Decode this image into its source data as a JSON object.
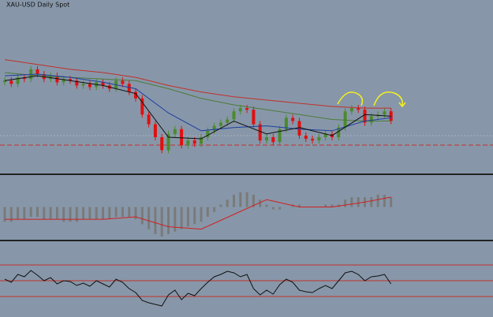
{
  "chart_data": [
    {
      "type": "candlestick",
      "title": "XAU-USD Daily Spot",
      "ylim": [
        0,
        100
      ],
      "up_color": "#4b8a2c",
      "down_color": "#e01010",
      "open": [
        54,
        55,
        53,
        57,
        56,
        62,
        59,
        56,
        58,
        54,
        56,
        55,
        52,
        53,
        51,
        54,
        52,
        50,
        55,
        53,
        48,
        44,
        34,
        28,
        20,
        12,
        22,
        25,
        15,
        18,
        16,
        20,
        24,
        27,
        29,
        31,
        36,
        38,
        37,
        28,
        18,
        20,
        17,
        25,
        32,
        30,
        21,
        19,
        18,
        20,
        22,
        20,
        26,
        36,
        38,
        37,
        29,
        33,
        34,
        36
      ],
      "high": [
        57,
        57,
        59,
        59,
        64,
        64,
        61,
        60,
        60,
        58,
        58,
        57,
        55,
        55,
        56,
        56,
        54,
        57,
        57,
        55,
        50,
        46,
        36,
        30,
        22,
        24,
        27,
        27,
        20,
        20,
        22,
        26,
        29,
        31,
        33,
        38,
        40,
        40,
        39,
        30,
        22,
        22,
        27,
        34,
        34,
        32,
        23,
        21,
        22,
        24,
        24,
        28,
        38,
        40,
        40,
        39,
        35,
        36,
        38,
        38
      ],
      "low": [
        52,
        51,
        51,
        54,
        54,
        57,
        54,
        54,
        52,
        52,
        53,
        50,
        50,
        49,
        49,
        50,
        48,
        48,
        51,
        46,
        42,
        32,
        26,
        18,
        10,
        10,
        20,
        13,
        13,
        14,
        14,
        18,
        22,
        25,
        27,
        29,
        34,
        35,
        26,
        16,
        16,
        15,
        15,
        23,
        28,
        19,
        17,
        16,
        16,
        18,
        18,
        18,
        24,
        34,
        35,
        27,
        27,
        31,
        32,
        28
      ],
      "close": [
        55,
        53,
        57,
        56,
        62,
        59,
        56,
        58,
        54,
        56,
        55,
        52,
        53,
        51,
        54,
        52,
        50,
        55,
        53,
        48,
        44,
        34,
        28,
        20,
        12,
        22,
        25,
        15,
        18,
        16,
        20,
        24,
        27,
        29,
        31,
        36,
        38,
        37,
        28,
        18,
        20,
        17,
        25,
        32,
        30,
        21,
        19,
        18,
        20,
        22,
        20,
        26,
        36,
        38,
        37,
        29,
        33,
        34,
        36,
        30
      ],
      "series": [
        {
          "color": "#c0302a",
          "x": [
            0,
            5,
            10,
            15,
            20,
            25,
            30,
            35,
            40,
            45,
            50,
            55,
            59
          ],
          "values": [
            68,
            65,
            62,
            60,
            57,
            52,
            48,
            45,
            43,
            41,
            39,
            38,
            38
          ]
        },
        {
          "color": "#4d7a3a",
          "x": [
            0,
            5,
            10,
            15,
            20,
            25,
            30,
            35,
            40,
            45,
            50,
            55,
            59
          ],
          "values": [
            60,
            58,
            57,
            56,
            55,
            50,
            44,
            40,
            37,
            34,
            31,
            30,
            30
          ]
        },
        {
          "color": "#1f3fa0",
          "x": [
            0,
            5,
            10,
            15,
            20,
            25,
            30,
            35,
            40,
            45,
            50,
            55,
            59
          ],
          "values": [
            58,
            59,
            57,
            54,
            50,
            35,
            24,
            26,
            27,
            25,
            24,
            30,
            32
          ]
        },
        {
          "color": "#111111",
          "x": [
            0,
            5,
            10,
            15,
            20,
            25,
            30,
            35,
            40,
            45,
            50,
            55,
            59
          ],
          "values": [
            55,
            58,
            55,
            52,
            47,
            20,
            19,
            30,
            22,
            26,
            21,
            34,
            33
          ]
        }
      ]
    },
    {
      "type": "macd",
      "ylim": [
        -12,
        12
      ],
      "bar_color": "#7a7a7a",
      "line_color": "#d02020",
      "values": [
        -6,
        -6,
        -5,
        -5,
        -4,
        -4,
        -5,
        -5,
        -5,
        -6,
        -6,
        -6,
        -5,
        -5,
        -5,
        -5,
        -5,
        -4,
        -4,
        -4,
        -5,
        -7,
        -9,
        -11,
        -12,
        -11,
        -10,
        -9,
        -8,
        -7,
        -6,
        -4,
        -2,
        1,
        3,
        5,
        6,
        6,
        5,
        3,
        1,
        -1,
        -1,
        0,
        1,
        1,
        0,
        0,
        0,
        1,
        1,
        1,
        3,
        4,
        4,
        4,
        4,
        5,
        5,
        4
      ],
      "signal_x": [
        0,
        5,
        10,
        15,
        20,
        25,
        30,
        35,
        40,
        45,
        50,
        55,
        59
      ],
      "signal": [
        -5,
        -5,
        -5,
        -5,
        -4,
        -8,
        -9,
        -3,
        3,
        0,
        0,
        2,
        4
      ]
    },
    {
      "type": "rsi",
      "ylim": [
        8,
        100
      ],
      "levels": [
        30,
        50,
        70
      ],
      "line_color": "#111111",
      "level_color": "#c0302a",
      "values": [
        52,
        48,
        58,
        55,
        63,
        57,
        50,
        54,
        46,
        50,
        49,
        44,
        47,
        43,
        50,
        46,
        42,
        52,
        48,
        40,
        35,
        25,
        22,
        20,
        18,
        32,
        38,
        26,
        34,
        31,
        40,
        48,
        55,
        58,
        62,
        60,
        55,
        58,
        40,
        32,
        38,
        33,
        45,
        52,
        48,
        38,
        36,
        35,
        40,
        44,
        40,
        50,
        60,
        62,
        58,
        50,
        55,
        56,
        58,
        46
      ]
    }
  ]
}
